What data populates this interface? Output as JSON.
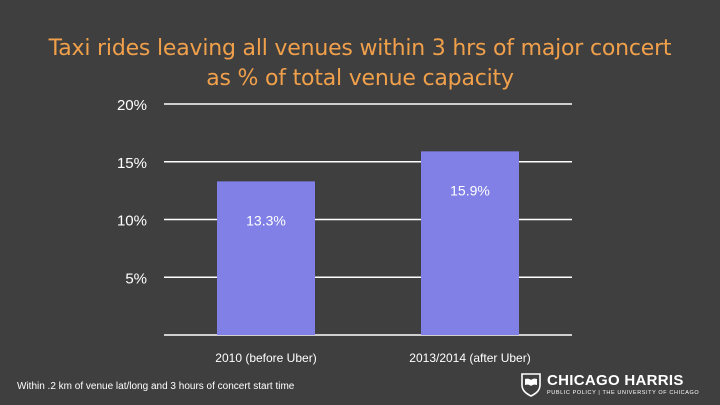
{
  "chart_data": {
    "type": "bar",
    "title": "Taxi rides leaving all venues within 3 hrs of major concert as % of total venue capacity",
    "categories": [
      "2010 (before Uber)",
      "2013/2014 (after Uber)"
    ],
    "values": [
      13.3,
      15.9
    ],
    "data_labels": [
      "13.3%",
      "15.9%"
    ],
    "yticks": [
      {
        "value": 5,
        "label": "5%"
      },
      {
        "value": 10,
        "label": "10%"
      },
      {
        "value": 15,
        "label": "15%"
      },
      {
        "value": 20,
        "label": "20%"
      }
    ],
    "ylim": [
      0,
      20
    ],
    "grid": true,
    "colors": {
      "bar": "#8080e6",
      "grid": "#ffffff",
      "text": "#ffffff",
      "title": "#f0a04b",
      "background": "#3f3f3f"
    }
  },
  "footnote": "Within .2 km of venue lat/long and 3 hours of concert start time",
  "logo": {
    "name": "CHICAGO HARRIS",
    "subtitle": "PUBLIC POLICY | THE UNIVERSITY OF CHICAGO",
    "icon": "university-shield-icon"
  }
}
